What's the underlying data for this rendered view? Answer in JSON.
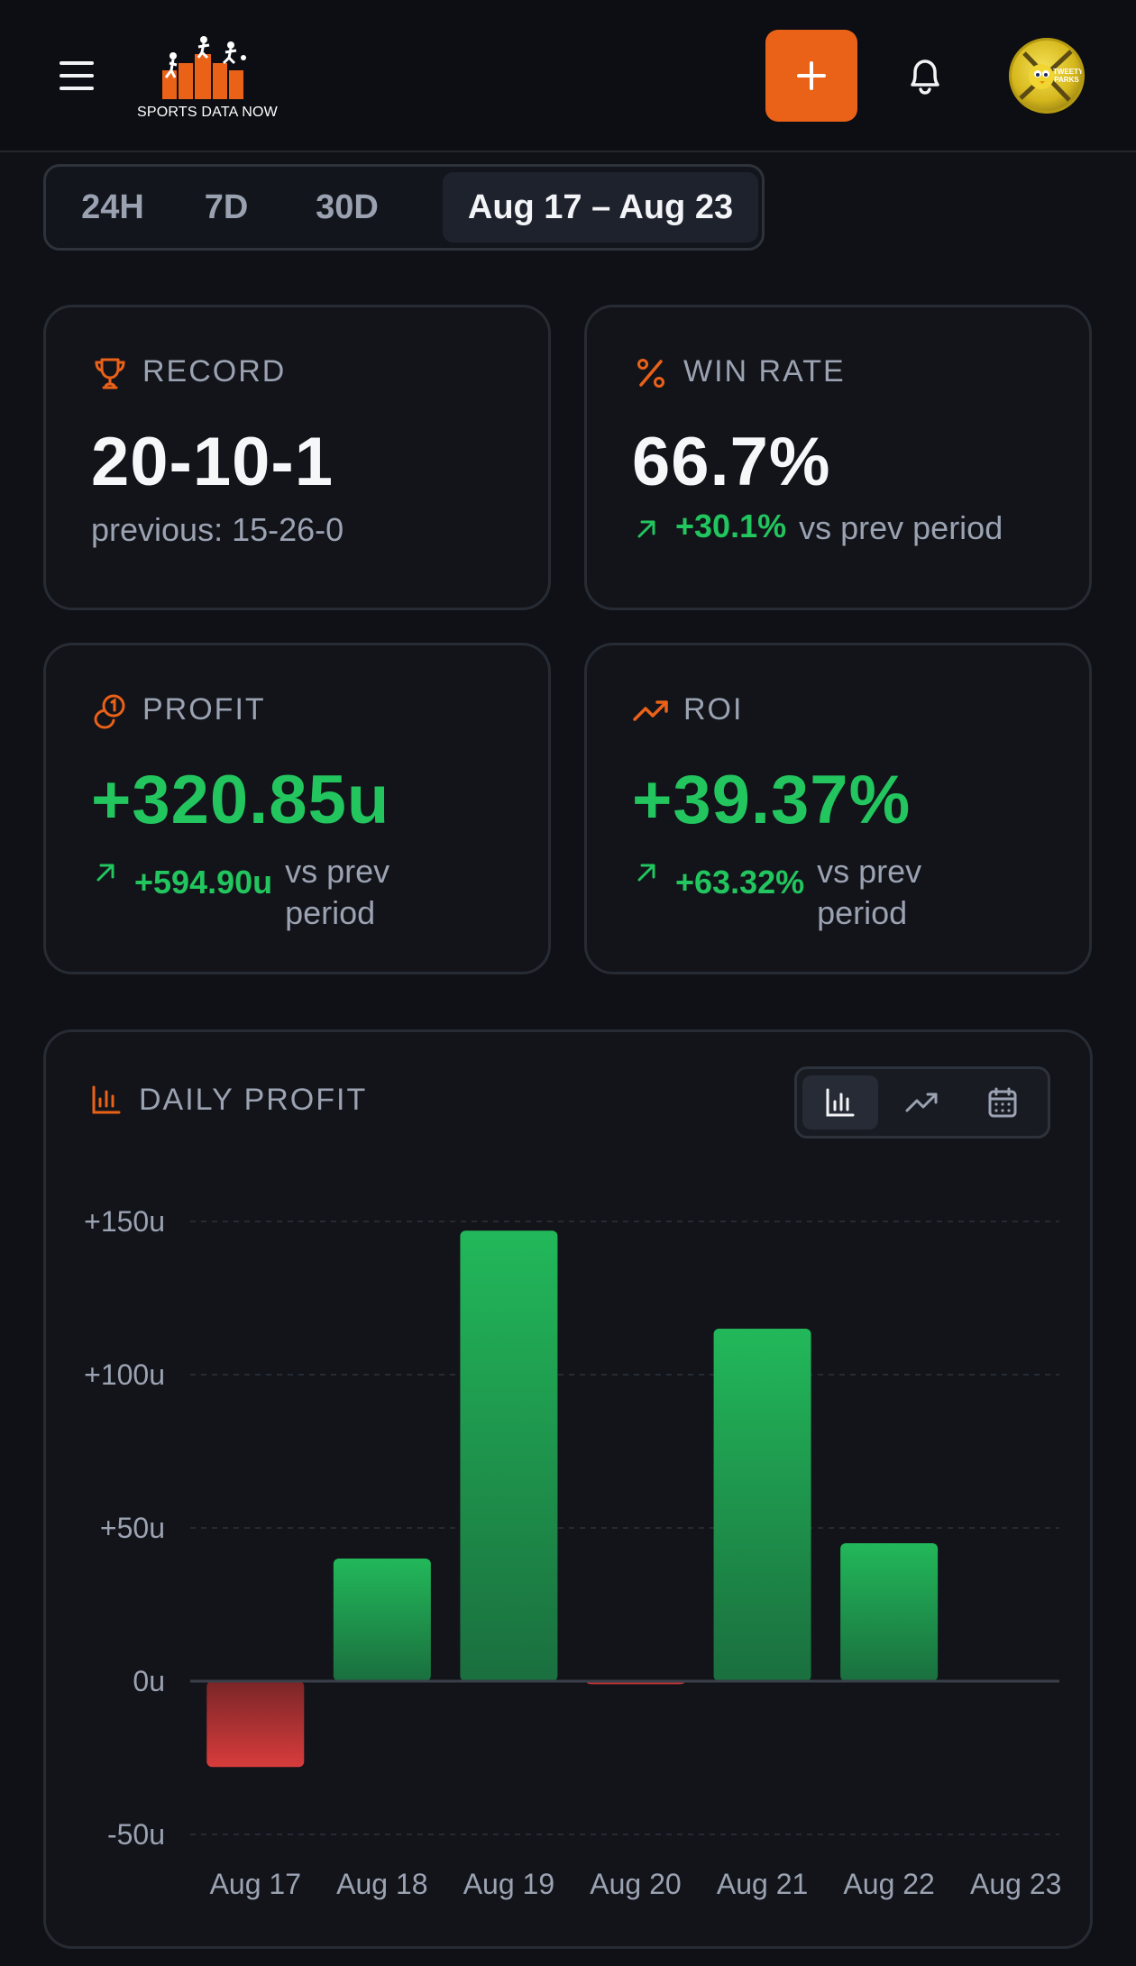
{
  "header": {
    "logo_text": "SPORTS DATA NOW",
    "add_label": "+",
    "avatar_text": "TWEETY PARKS",
    "accent_color": "#ea6118"
  },
  "range_tabs": [
    {
      "label": "24H",
      "active": false
    },
    {
      "label": "7D",
      "active": false
    },
    {
      "label": "30D",
      "active": false
    },
    {
      "label": "Aug 17 – Aug 23",
      "active": true
    }
  ],
  "cards": {
    "record": {
      "icon": "trophy-icon",
      "label": "RECORD",
      "value": "20-10-1",
      "sub": "previous: 15-26-0"
    },
    "win_rate": {
      "icon": "percent-icon",
      "label": "WIN RATE",
      "value": "66.7%",
      "delta": "+30.1%",
      "vs": "vs prev period"
    },
    "profit": {
      "icon": "coins-icon",
      "label": "PROFIT",
      "value": "+320.85u",
      "delta": "+594.90u",
      "vs": "vs prev period"
    },
    "roi": {
      "icon": "trending-up-icon",
      "label": "ROI",
      "value": "+39.37%",
      "delta": "+63.32%",
      "vs": "vs prev period"
    }
  },
  "daily_profit": {
    "title": "DAILY PROFIT",
    "views": [
      "bar-chart-icon",
      "line-chart-icon",
      "calendar-icon"
    ],
    "active_view": "bar-chart-icon"
  },
  "chart_data": {
    "type": "bar",
    "categories": [
      "Aug 17",
      "Aug 18",
      "Aug 19",
      "Aug 20",
      "Aug 21",
      "Aug 22",
      "Aug 23"
    ],
    "values": [
      -28,
      40,
      147,
      -1,
      115,
      45,
      0
    ],
    "yticks": [
      "+150u",
      "+100u",
      "+50u",
      "0u",
      "-50u"
    ],
    "ytick_values": [
      150,
      100,
      50,
      0,
      -50
    ],
    "ylim": [
      -50,
      150
    ],
    "grid": true,
    "positive_color": "#22c55e",
    "negative_color": "#dc3b3b"
  }
}
